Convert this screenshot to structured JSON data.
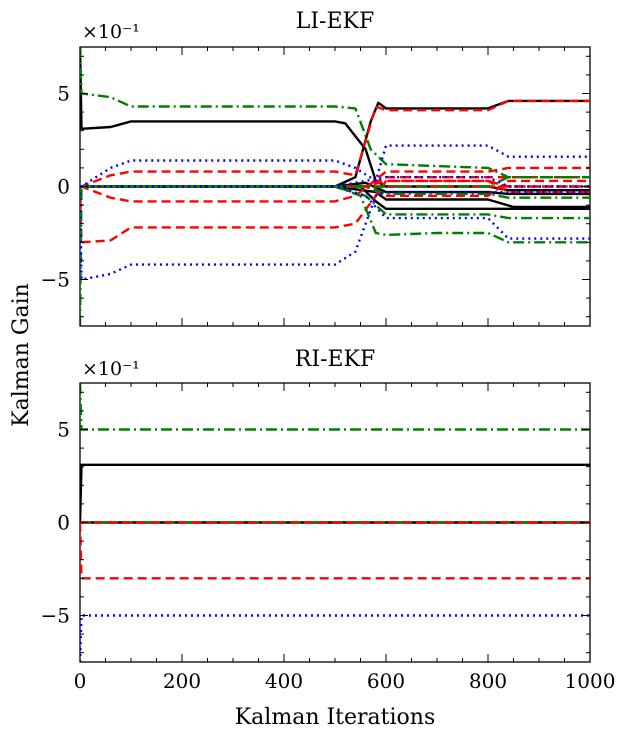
{
  "figure": {
    "ylabel": "Kalman Gain",
    "xlabel": "Kalman Iterations"
  },
  "colors": {
    "black": "#000000",
    "red": "#ff0000",
    "green": "#008000",
    "blue": "#0000ff"
  },
  "chart_data": [
    {
      "type": "line",
      "title": "LI-EKF",
      "exponent_label": "×10⁻¹",
      "xlim": [
        0,
        1000
      ],
      "ylim": [
        -7.5,
        7.5
      ],
      "xticks": [
        0,
        200,
        400,
        600,
        800,
        1000
      ],
      "xtick_labels": [
        "",
        "",
        "",
        "",
        "",
        ""
      ],
      "yticks": [
        -5,
        0,
        5
      ],
      "ytick_labels": [
        "−5",
        "0",
        "5"
      ],
      "series": [
        {
          "name": "black-1",
          "color": "black",
          "dash": "solid",
          "x": [
            0,
            3,
            60,
            100,
            500,
            520,
            560,
            580,
            600,
            700,
            800,
            840,
            1000
          ],
          "y": [
            7.5,
            3.1,
            3.2,
            3.5,
            3.5,
            3.4,
            2.0,
            0.3,
            0.0,
            0.0,
            0.0,
            -0.2,
            -0.2
          ]
        },
        {
          "name": "black-2",
          "color": "black",
          "dash": "solid",
          "x": [
            0,
            3,
            500,
            540,
            570,
            585,
            600,
            800,
            840,
            1000
          ],
          "y": [
            0.0,
            0.0,
            0.0,
            0.5,
            3.5,
            4.5,
            4.2,
            4.2,
            4.6,
            4.6
          ]
        },
        {
          "name": "black-3",
          "color": "black",
          "dash": "solid",
          "x": [
            0,
            3,
            500,
            550,
            580,
            600,
            700,
            800,
            840,
            1000
          ],
          "y": [
            0.0,
            0.0,
            0.0,
            0.0,
            -0.8,
            -1.2,
            -1.2,
            -1.2,
            -1.2,
            -1.2
          ]
        },
        {
          "name": "black-4",
          "color": "black",
          "dash": "solid",
          "x": [
            0,
            3,
            500,
            560,
            600,
            800,
            840,
            1000
          ],
          "y": [
            0.0,
            0.0,
            0.0,
            0.2,
            -0.3,
            -0.3,
            -0.4,
            -0.4
          ]
        },
        {
          "name": "black-5",
          "color": "black",
          "dash": "solid",
          "x": [
            0,
            3,
            500,
            580,
            600,
            800,
            850,
            1000
          ],
          "y": [
            0.0,
            0.0,
            0.0,
            -0.3,
            -0.7,
            -0.7,
            -1.1,
            -1.1
          ]
        },
        {
          "name": "red-1",
          "color": "red",
          "dash": "dash",
          "x": [
            0,
            3,
            60,
            100,
            500,
            540,
            580,
            600,
            800,
            840,
            1000
          ],
          "y": [
            0.0,
            -3.0,
            -2.9,
            -2.2,
            -2.2,
            -2.0,
            -0.5,
            0.3,
            0.3,
            0.0,
            0.0
          ]
        },
        {
          "name": "red-2",
          "color": "red",
          "dash": "dash",
          "x": [
            0,
            3,
            60,
            100,
            500,
            540,
            580,
            600,
            700,
            800,
            840,
            1000
          ],
          "y": [
            0.0,
            0.0,
            0.6,
            0.8,
            0.8,
            0.6,
            4.3,
            4.1,
            4.1,
            4.1,
            4.6,
            4.6
          ]
        },
        {
          "name": "red-3",
          "color": "red",
          "dash": "dash",
          "x": [
            0,
            3,
            60,
            100,
            500,
            540,
            600,
            700,
            800,
            840,
            1000
          ],
          "y": [
            0.0,
            0.0,
            -0.6,
            -0.8,
            -0.8,
            -0.5,
            0.8,
            0.8,
            0.8,
            1.0,
            1.0
          ]
        },
        {
          "name": "red-4",
          "color": "red",
          "dash": "dash",
          "x": [
            0,
            3,
            500,
            540,
            600,
            800,
            840,
            1000
          ],
          "y": [
            0.0,
            0.0,
            0.0,
            0.0,
            0.0,
            0.0,
            0.0,
            0.0
          ]
        },
        {
          "name": "red-5",
          "color": "red",
          "dash": "dash",
          "x": [
            0,
            3,
            500,
            560,
            600,
            800,
            840,
            1000
          ],
          "y": [
            0.0,
            0.0,
            0.0,
            0.0,
            -0.5,
            -0.5,
            0.3,
            0.3
          ]
        },
        {
          "name": "red-6",
          "color": "red",
          "dash": "dash",
          "x": [
            0,
            3,
            500,
            560,
            600,
            800,
            840,
            1000
          ],
          "y": [
            0.0,
            0.0,
            0.0,
            0.0,
            0.3,
            0.3,
            -0.3,
            -0.3
          ]
        },
        {
          "name": "red-7",
          "color": "red",
          "dash": "dash",
          "x": [
            0,
            3,
            500,
            560,
            600,
            800,
            850,
            1000
          ],
          "y": [
            0.0,
            0.0,
            0.0,
            0.0,
            0.5,
            0.5,
            0.5,
            0.5
          ]
        },
        {
          "name": "green-1",
          "color": "green",
          "dash": "dashdot",
          "x": [
            0,
            3,
            60,
            100,
            500,
            540,
            570,
            600,
            800,
            840,
            1000
          ],
          "y": [
            7.5,
            5.0,
            4.8,
            4.3,
            4.3,
            4.2,
            2.0,
            1.2,
            1.0,
            0.5,
            0.5
          ]
        },
        {
          "name": "green-2",
          "color": "green",
          "dash": "dashdot",
          "x": [
            0,
            3,
            500,
            550,
            580,
            600,
            700,
            800,
            840,
            1000
          ],
          "y": [
            0.0,
            0.0,
            0.0,
            -0.5,
            -2.5,
            -2.6,
            -2.5,
            -2.5,
            -3.0,
            -3.0
          ]
        },
        {
          "name": "green-3",
          "color": "green",
          "dash": "dashdot",
          "x": [
            0,
            3,
            500,
            560,
            600,
            800,
            840,
            1000
          ],
          "y": [
            -7.5,
            0.0,
            0.0,
            -0.5,
            -1.5,
            -1.5,
            -1.7,
            -1.7
          ]
        },
        {
          "name": "green-4",
          "color": "green",
          "dash": "dashdot",
          "x": [
            0,
            3,
            500,
            560,
            600,
            800,
            840,
            1000
          ],
          "y": [
            0.0,
            0.0,
            0.0,
            0.0,
            0.0,
            0.0,
            0.5,
            0.5
          ]
        },
        {
          "name": "green-5",
          "color": "green",
          "dash": "dashdot",
          "x": [
            0,
            3,
            500,
            560,
            600,
            800,
            840,
            1000
          ],
          "y": [
            0.0,
            0.0,
            0.0,
            0.0,
            -0.4,
            -0.4,
            -0.6,
            -0.6
          ]
        },
        {
          "name": "blue-1",
          "color": "blue",
          "dash": "dot",
          "x": [
            0,
            3,
            60,
            100,
            500,
            540,
            580,
            600,
            800,
            840,
            1000
          ],
          "y": [
            0.0,
            -5.0,
            -4.7,
            -4.2,
            -4.2,
            -3.5,
            -0.5,
            -0.3,
            -0.3,
            -0.3,
            -0.3
          ]
        },
        {
          "name": "blue-2",
          "color": "blue",
          "dash": "dot",
          "x": [
            0,
            3,
            60,
            100,
            500,
            540,
            580,
            600,
            800,
            840,
            1000
          ],
          "y": [
            0.0,
            0.0,
            1.0,
            1.4,
            1.4,
            1.0,
            0.3,
            2.2,
            2.2,
            1.6,
            1.6
          ]
        },
        {
          "name": "blue-3",
          "color": "blue",
          "dash": "dot",
          "x": [
            0,
            3,
            500,
            560,
            600,
            800,
            840,
            1000
          ],
          "y": [
            0.0,
            0.0,
            0.0,
            -0.5,
            -1.7,
            -1.7,
            -2.8,
            -2.8
          ]
        },
        {
          "name": "blue-4",
          "color": "blue",
          "dash": "dot",
          "x": [
            0,
            3,
            500,
            560,
            600,
            800,
            840,
            1000
          ],
          "y": [
            0.0,
            0.0,
            0.0,
            0.3,
            0.5,
            0.5,
            0.0,
            0.0
          ]
        }
      ]
    },
    {
      "type": "line",
      "title": "RI-EKF",
      "exponent_label": "×10⁻¹",
      "xlim": [
        0,
        1000
      ],
      "ylim": [
        -7.5,
        7.5
      ],
      "xticks": [
        0,
        200,
        400,
        600,
        800,
        1000
      ],
      "xtick_labels": [
        "0",
        "200",
        "400",
        "600",
        "800",
        "1000"
      ],
      "yticks": [
        -5,
        0,
        5
      ],
      "ytick_labels": [
        "−5",
        "0",
        "5"
      ],
      "series": [
        {
          "name": "green-1",
          "color": "green",
          "dash": "dashdot",
          "x": [
            0,
            3,
            1000
          ],
          "y": [
            7.5,
            5.0,
            5.0
          ]
        },
        {
          "name": "black-1",
          "color": "black",
          "dash": "solid",
          "x": [
            0,
            3,
            1000
          ],
          "y": [
            0.0,
            3.1,
            3.1
          ]
        },
        {
          "name": "black-2",
          "color": "black",
          "dash": "solid",
          "x": [
            0,
            1000
          ],
          "y": [
            0.0,
            0.0
          ]
        },
        {
          "name": "green-2",
          "color": "green",
          "dash": "dashdot",
          "x": [
            0,
            1000
          ],
          "y": [
            0.0,
            0.0
          ]
        },
        {
          "name": "red-1",
          "color": "red",
          "dash": "dash",
          "x": [
            0,
            1000
          ],
          "y": [
            0.0,
            0.0
          ]
        },
        {
          "name": "red-2",
          "color": "red",
          "dash": "dash",
          "x": [
            0,
            3,
            1000
          ],
          "y": [
            0.0,
            -3.0,
            -3.0
          ]
        },
        {
          "name": "blue-1",
          "color": "blue",
          "dash": "dot",
          "x": [
            0,
            3,
            1000
          ],
          "y": [
            -7.5,
            -5.0,
            -5.0
          ]
        }
      ]
    }
  ]
}
